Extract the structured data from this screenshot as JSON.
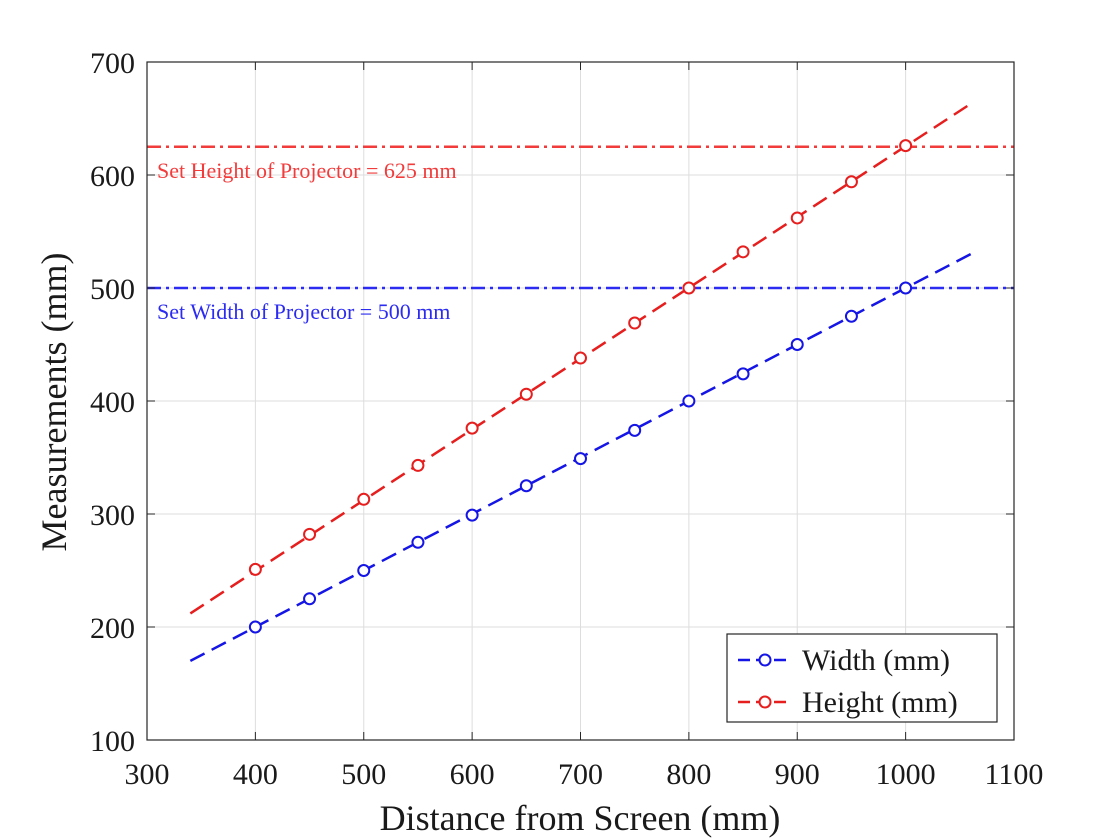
{
  "chart_data": {
    "type": "line",
    "title": "",
    "xlabel": "Distance from Screen (mm)",
    "ylabel": "Measurements (mm)",
    "xlim": [
      300,
      1100
    ],
    "ylim": [
      100,
      700
    ],
    "xticks": [
      300,
      400,
      500,
      600,
      700,
      800,
      900,
      1000,
      1100
    ],
    "yticks": [
      100,
      200,
      300,
      400,
      500,
      600,
      700
    ],
    "grid": true,
    "legend_position": "bottom-right",
    "series": [
      {
        "name": "Width (mm)",
        "color": "#1515e6",
        "x": [
          400,
          450,
          500,
          550,
          600,
          650,
          700,
          750,
          800,
          850,
          900,
          950,
          1000
        ],
        "y": [
          200,
          225,
          250,
          275,
          299,
          325,
          349,
          374,
          400,
          424,
          450,
          475,
          500
        ],
        "fit_x": [
          340,
          1060
        ],
        "fit_y": [
          170,
          530
        ]
      },
      {
        "name": "Height (mm)",
        "color": "#e61e1e",
        "x": [
          400,
          450,
          500,
          550,
          600,
          650,
          700,
          750,
          800,
          850,
          900,
          950,
          1000
        ],
        "y": [
          251,
          282,
          313,
          343,
          376,
          406,
          438,
          469,
          500,
          532,
          562,
          594,
          626
        ],
        "fit_x": [
          340,
          1060
        ],
        "fit_y": [
          212,
          663
        ]
      }
    ],
    "reference_lines": [
      {
        "label": "Set Height of Projector = 625 mm",
        "y": 625,
        "color": "#f23b3b"
      },
      {
        "label": "Set Width of Projector = 500 mm",
        "y": 500,
        "color": "#2b2bf2"
      }
    ]
  }
}
